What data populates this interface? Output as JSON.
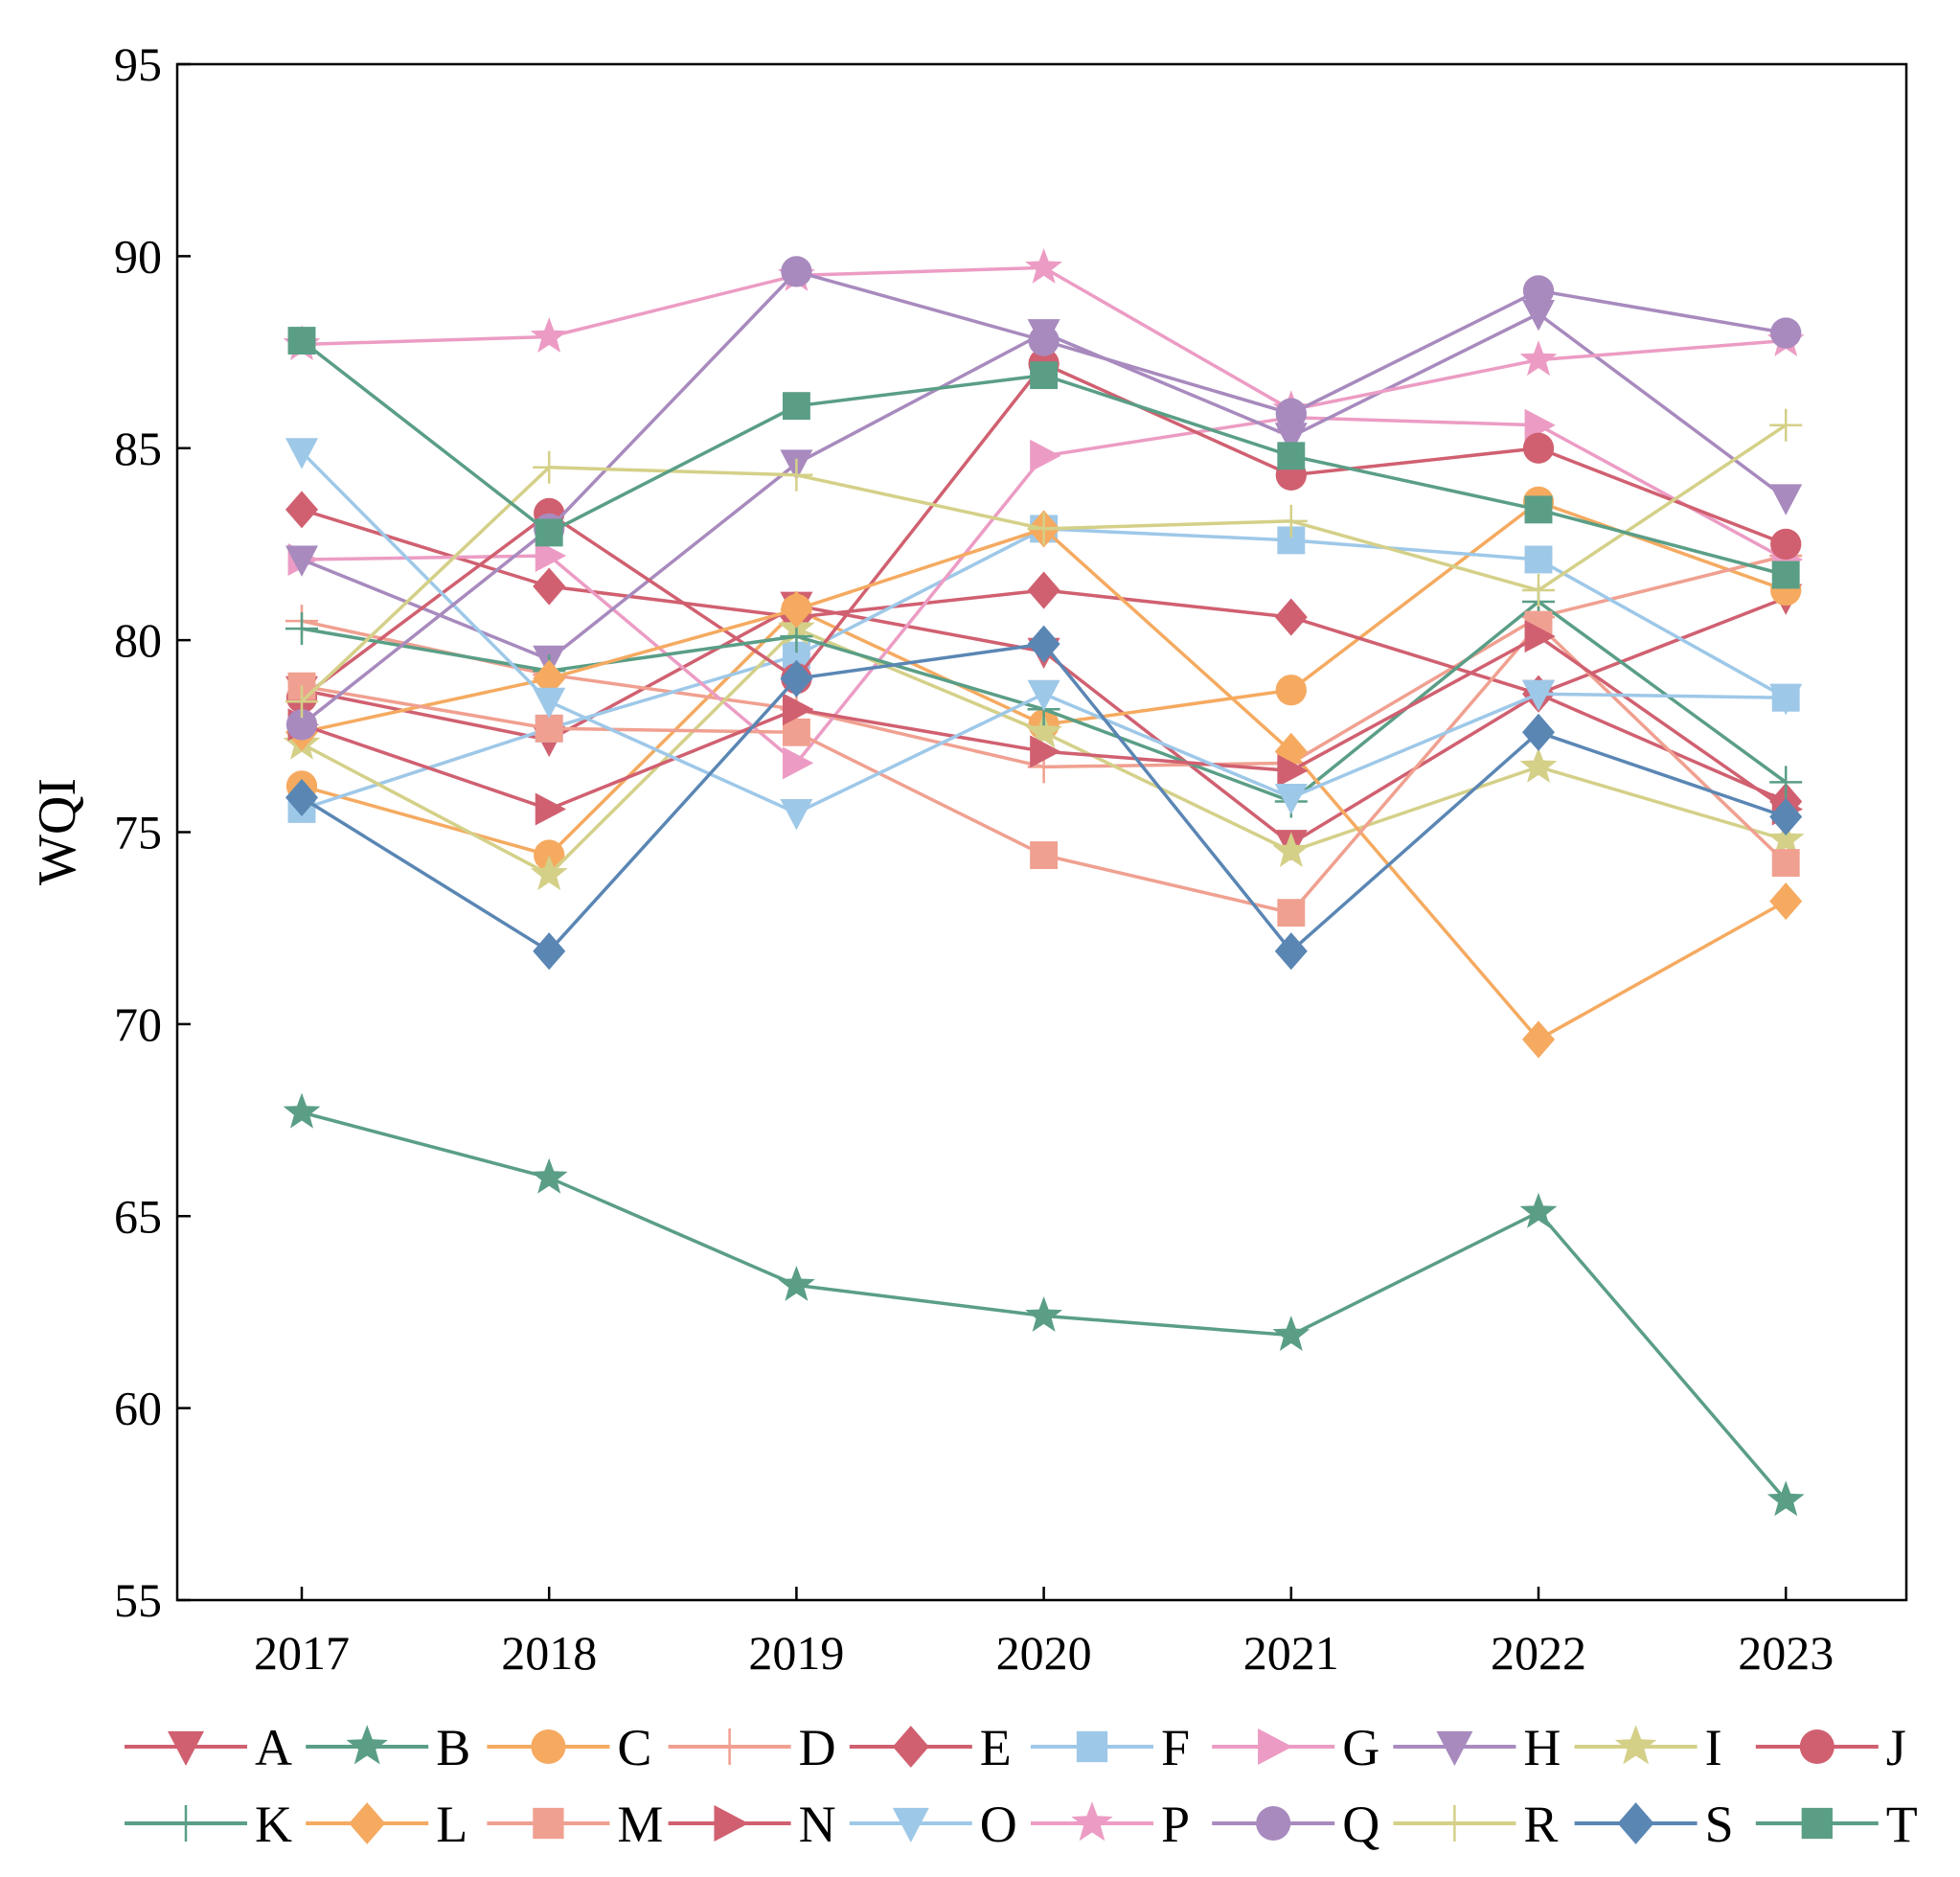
{
  "chart_data": {
    "type": "line",
    "title": "",
    "xlabel": "",
    "ylabel": "WQI",
    "ylim": [
      55,
      95
    ],
    "yticks": [
      55,
      60,
      65,
      70,
      75,
      80,
      85,
      90,
      95
    ],
    "categories": [
      "2017",
      "2018",
      "2019",
      "2020",
      "2021",
      "2022",
      "2023"
    ],
    "series": [
      {
        "name": "A",
        "color": "#d06070",
        "marker": "triangle-down",
        "values": [
          78.7,
          77.4,
          80.9,
          79.7,
          74.7,
          78.6,
          81.1
        ]
      },
      {
        "name": "B",
        "color": "#5a9e86",
        "marker": "star",
        "values": [
          67.7,
          66.0,
          63.2,
          62.4,
          61.9,
          65.1,
          57.6
        ]
      },
      {
        "name": "C",
        "color": "#f5aa60",
        "marker": "circle",
        "values": [
          76.2,
          74.4,
          80.8,
          77.8,
          78.7,
          83.6,
          81.3
        ]
      },
      {
        "name": "D",
        "color": "#f0a090",
        "marker": "plus",
        "values": [
          80.5,
          79.1,
          78.2,
          76.7,
          76.8,
          80.6,
          82.2
        ]
      },
      {
        "name": "E",
        "color": "#d06070",
        "marker": "diamond",
        "values": [
          83.4,
          81.4,
          80.6,
          81.3,
          80.6,
          78.6,
          75.8
        ]
      },
      {
        "name": "F",
        "color": "#9ec8e8",
        "marker": "square",
        "values": [
          75.6,
          77.7,
          79.6,
          82.9,
          82.6,
          82.1,
          78.5
        ]
      },
      {
        "name": "G",
        "color": "#ec9cc4",
        "marker": "triangle-right",
        "values": [
          82.1,
          82.2,
          76.8,
          84.8,
          85.8,
          85.6,
          82.1
        ]
      },
      {
        "name": "H",
        "color": "#a88abe",
        "marker": "triangle-down",
        "values": [
          82.1,
          79.5,
          84.6,
          88.0,
          85.3,
          88.5,
          83.7
        ]
      },
      {
        "name": "I",
        "color": "#d4d088",
        "marker": "star",
        "values": [
          77.3,
          73.9,
          80.3,
          77.6,
          74.5,
          76.7,
          74.8
        ]
      },
      {
        "name": "J",
        "color": "#d06070",
        "marker": "circle",
        "values": [
          78.5,
          83.3,
          79.0,
          87.2,
          84.3,
          85.0,
          82.5
        ]
      },
      {
        "name": "K",
        "color": "#5a9e86",
        "marker": "plus",
        "values": [
          80.3,
          79.2,
          80.1,
          78.2,
          75.8,
          81.0,
          76.3
        ]
      },
      {
        "name": "L",
        "color": "#f5aa60",
        "marker": "diamond",
        "values": [
          77.6,
          79.0,
          80.8,
          82.9,
          77.1,
          69.6,
          73.2
        ]
      },
      {
        "name": "M",
        "color": "#f0a090",
        "marker": "square",
        "values": [
          78.8,
          77.7,
          77.6,
          74.4,
          72.9,
          80.4,
          74.2
        ]
      },
      {
        "name": "N",
        "color": "#d06070",
        "marker": "triangle-right",
        "values": [
          77.8,
          75.6,
          78.2,
          77.1,
          76.6,
          80.1,
          75.6
        ]
      },
      {
        "name": "O",
        "color": "#9ec8e8",
        "marker": "triangle-down",
        "values": [
          84.9,
          78.4,
          75.5,
          78.6,
          75.9,
          78.6,
          78.5
        ]
      },
      {
        "name": "P",
        "color": "#ec9cc4",
        "marker": "star",
        "values": [
          87.7,
          87.9,
          89.5,
          89.7,
          86.0,
          87.3,
          87.8
        ]
      },
      {
        "name": "Q",
        "color": "#a88abe",
        "marker": "circle",
        "values": [
          77.8,
          82.9,
          89.6,
          87.8,
          85.9,
          89.1,
          88.0
        ]
      },
      {
        "name": "R",
        "color": "#d4d088",
        "marker": "plus",
        "values": [
          78.4,
          84.5,
          84.3,
          82.9,
          83.1,
          81.3,
          85.6
        ]
      },
      {
        "name": "S",
        "color": "#5a86b4",
        "marker": "diamond",
        "values": [
          75.9,
          71.9,
          79.0,
          79.9,
          71.9,
          77.6,
          75.4
        ]
      },
      {
        "name": "T",
        "color": "#5a9e86",
        "marker": "square",
        "values": [
          87.8,
          82.8,
          86.1,
          86.9,
          84.8,
          83.4,
          81.7
        ]
      }
    ]
  }
}
